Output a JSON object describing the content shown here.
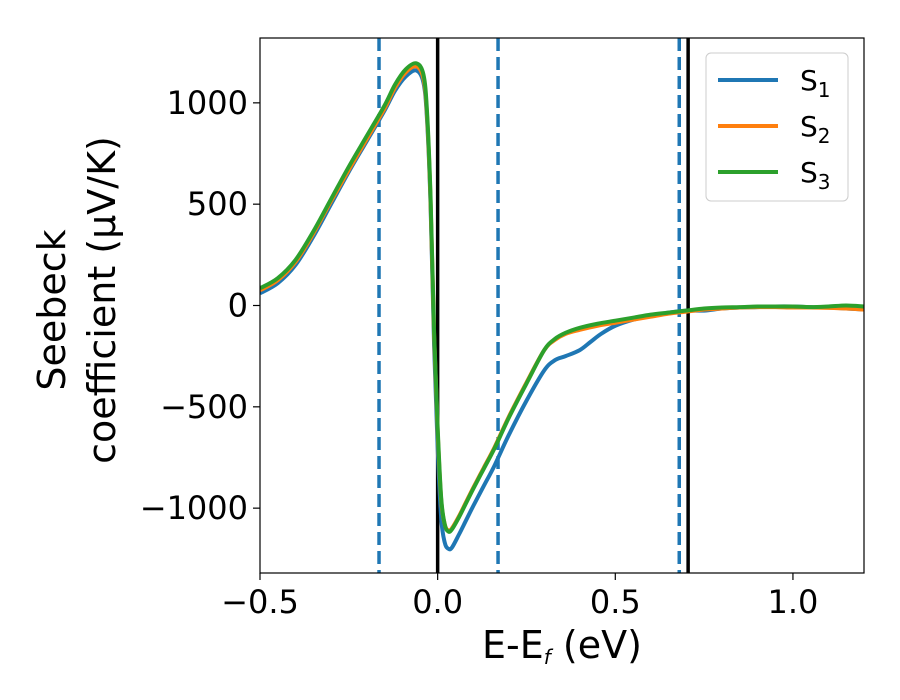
{
  "chart_data": {
    "type": "line",
    "xlabel_main": "E-E",
    "xlabel_sub": "f",
    "xlabel_unit": " (eV)",
    "ylabel_line1": "Seebeck",
    "ylabel_line2": "coefficient  (μV/K)",
    "xlim": [
      -0.5,
      1.2
    ],
    "ylim": [
      -1320,
      1320
    ],
    "xticks": [
      {
        "value": -0.5,
        "label": "−0.5"
      },
      {
        "value": 0.0,
        "label": "0.0"
      },
      {
        "value": 0.5,
        "label": "0.5"
      },
      {
        "value": 1.0,
        "label": "1.0"
      }
    ],
    "yticks": [
      {
        "value": 1000,
        "label": "1000"
      },
      {
        "value": 500,
        "label": "500"
      },
      {
        "value": 0,
        "label": "0"
      },
      {
        "value": -500,
        "label": "−500"
      },
      {
        "value": -1000,
        "label": "−1000"
      }
    ],
    "legend": {
      "position": "upper right"
    },
    "solid_vlines": [
      0.0,
      0.705
    ],
    "dashed_vlines": [
      -0.165,
      0.17,
      0.68
    ],
    "vline_dashed_color": "#1f77b4",
    "vline_solid_color": "#000000",
    "series": [
      {
        "name": "S",
        "sub": "1",
        "color": "#1f77b4",
        "x": [
          -0.5,
          -0.45,
          -0.4,
          -0.35,
          -0.3,
          -0.25,
          -0.2,
          -0.15,
          -0.12,
          -0.09,
          -0.06,
          -0.04,
          -0.03,
          -0.02,
          -0.01,
          0.0,
          0.01,
          0.02,
          0.03,
          0.04,
          0.06,
          0.08,
          0.1,
          0.13,
          0.16,
          0.2,
          0.25,
          0.3,
          0.33,
          0.36,
          0.4,
          0.43,
          0.46,
          0.5,
          0.55,
          0.6,
          0.65,
          0.7,
          0.75,
          0.8,
          0.85,
          0.9,
          0.95,
          1.0,
          1.05,
          1.1,
          1.15,
          1.2
        ],
        "y": [
          60,
          110,
          200,
          340,
          500,
          660,
          810,
          960,
          1060,
          1130,
          1160,
          1100,
          920,
          500,
          -200,
          -700,
          -1050,
          -1170,
          -1200,
          -1195,
          -1130,
          -1060,
          -990,
          -890,
          -790,
          -640,
          -470,
          -320,
          -270,
          -250,
          -220,
          -180,
          -140,
          -100,
          -70,
          -50,
          -35,
          -25,
          -25,
          -15,
          -10,
          -8,
          -5,
          -5,
          -8,
          -10,
          -15,
          -20
        ]
      },
      {
        "name": "S",
        "sub": "2",
        "color": "#ff7f0e",
        "x": [
          -0.5,
          -0.45,
          -0.4,
          -0.35,
          -0.3,
          -0.25,
          -0.2,
          -0.15,
          -0.12,
          -0.09,
          -0.06,
          -0.04,
          -0.03,
          -0.02,
          -0.01,
          0.0,
          0.01,
          0.02,
          0.03,
          0.04,
          0.06,
          0.08,
          0.1,
          0.13,
          0.16,
          0.2,
          0.25,
          0.3,
          0.33,
          0.36,
          0.4,
          0.45,
          0.5,
          0.55,
          0.6,
          0.65,
          0.7,
          0.75,
          0.8,
          0.85,
          0.9,
          0.95,
          1.0,
          1.05,
          1.1,
          1.15,
          1.2
        ],
        "y": [
          75,
          125,
          215,
          355,
          515,
          670,
          820,
          970,
          1075,
          1150,
          1180,
          1120,
          940,
          520,
          -150,
          -620,
          -960,
          -1080,
          -1110,
          -1100,
          -1040,
          -970,
          -900,
          -800,
          -700,
          -550,
          -380,
          -220,
          -170,
          -140,
          -120,
          -100,
          -85,
          -70,
          -55,
          -40,
          -30,
          -20,
          -15,
          -10,
          -8,
          -8,
          -10,
          -10,
          -12,
          -15,
          -20
        ]
      },
      {
        "name": "S",
        "sub": "3",
        "color": "#2ca02c",
        "x": [
          -0.5,
          -0.45,
          -0.4,
          -0.35,
          -0.3,
          -0.25,
          -0.2,
          -0.15,
          -0.12,
          -0.09,
          -0.06,
          -0.04,
          -0.03,
          -0.02,
          -0.01,
          0.0,
          0.01,
          0.02,
          0.03,
          0.04,
          0.06,
          0.08,
          0.1,
          0.13,
          0.16,
          0.2,
          0.25,
          0.3,
          0.33,
          0.36,
          0.4,
          0.45,
          0.5,
          0.55,
          0.6,
          0.65,
          0.7,
          0.75,
          0.8,
          0.85,
          0.9,
          0.95,
          1.0,
          1.05,
          1.1,
          1.15,
          1.2
        ],
        "y": [
          85,
          135,
          225,
          365,
          525,
          685,
          835,
          985,
          1090,
          1165,
          1195,
          1140,
          960,
          540,
          -130,
          -600,
          -950,
          -1080,
          -1115,
          -1105,
          -1045,
          -975,
          -905,
          -805,
          -705,
          -555,
          -385,
          -220,
          -165,
          -135,
          -110,
          -90,
          -75,
          -60,
          -45,
          -35,
          -25,
          -15,
          -10,
          -8,
          -5,
          -5,
          -5,
          -8,
          -5,
          0,
          -5
        ]
      }
    ]
  }
}
